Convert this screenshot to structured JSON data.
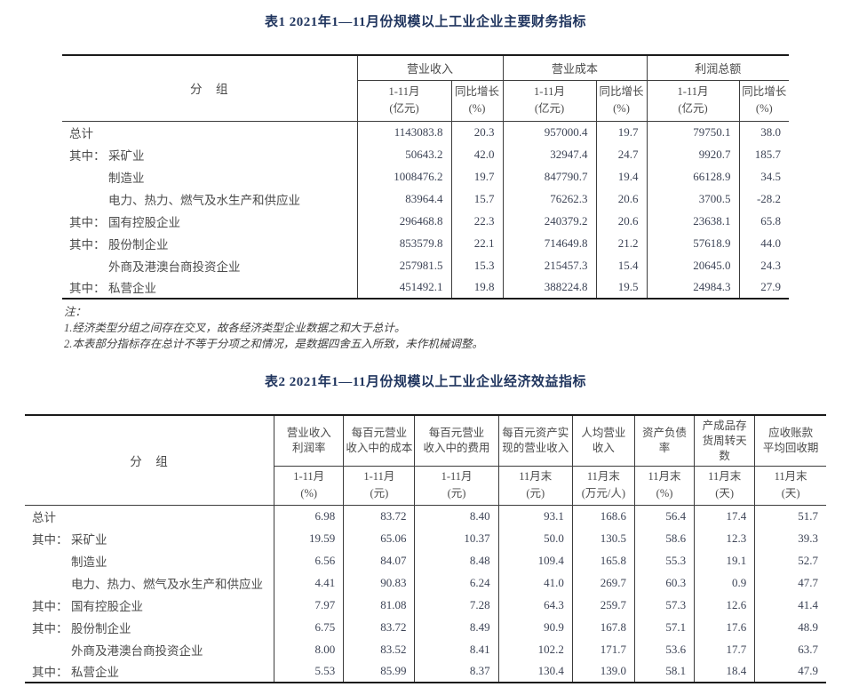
{
  "table1": {
    "title": "表1 2021年1—11月份规模以上工业企业主要财务指标",
    "group_header": "分　组",
    "col_groups": [
      {
        "label": "营业收入"
      },
      {
        "label": "营业成本"
      },
      {
        "label": "利润总额"
      }
    ],
    "sub_headers": [
      {
        "line1": "1-11月",
        "line2": "(亿元)"
      },
      {
        "line1": "同比增长",
        "line2": "(%)"
      },
      {
        "line1": "1-11月",
        "line2": "(亿元)"
      },
      {
        "line1": "同比增长",
        "line2": "(%)"
      },
      {
        "line1": "1-11月",
        "line2": "(亿元)"
      },
      {
        "line1": "同比增长",
        "line2": "(%)"
      }
    ],
    "rows": [
      {
        "prefix": "",
        "indent": false,
        "label": "总计",
        "values": [
          "1143083.8",
          "20.3",
          "957000.4",
          "19.7",
          "79750.1",
          "38.0"
        ]
      },
      {
        "prefix": "其中：",
        "indent": true,
        "label": "采矿业",
        "values": [
          "50643.2",
          "42.0",
          "32947.4",
          "24.7",
          "9920.7",
          "185.7"
        ]
      },
      {
        "prefix": "",
        "indent": true,
        "label": "制造业",
        "values": [
          "1008476.2",
          "19.7",
          "847790.7",
          "19.4",
          "66128.9",
          "34.5"
        ]
      },
      {
        "prefix": "",
        "indent": true,
        "label": "电力、热力、燃气及水生产和供应业",
        "values": [
          "83964.4",
          "15.7",
          "76262.3",
          "20.6",
          "3700.5",
          "-28.2"
        ]
      },
      {
        "prefix": "其中：",
        "indent": true,
        "label": "国有控股企业",
        "values": [
          "296468.8",
          "22.3",
          "240379.2",
          "20.6",
          "23638.1",
          "65.8"
        ]
      },
      {
        "prefix": "其中：",
        "indent": true,
        "label": "股份制企业",
        "values": [
          "853579.8",
          "22.1",
          "714649.8",
          "21.2",
          "57618.9",
          "44.0"
        ]
      },
      {
        "prefix": "",
        "indent": true,
        "label": "外商及港澳台商投资企业",
        "values": [
          "257981.5",
          "15.3",
          "215457.3",
          "15.4",
          "20645.0",
          "24.3"
        ]
      },
      {
        "prefix": "其中：",
        "indent": true,
        "label": "私营企业",
        "values": [
          "451492.1",
          "19.8",
          "388224.8",
          "19.5",
          "24984.3",
          "27.9"
        ]
      }
    ]
  },
  "notes": {
    "heading": "注：",
    "items": [
      "1.经济类型分组之间存在交叉，故各经济类型企业数据之和大于总计。",
      "2.本表部分指标存在总计不等于分项之和情况，是数据四舍五入所致，未作机械调整。"
    ]
  },
  "table2": {
    "title": "表2 2021年1—11月份规模以上工业企业经济效益指标",
    "group_header": "分　组",
    "columns": [
      {
        "title": "营业收入\n利润率",
        "period": "1-11月",
        "unit": "(%)"
      },
      {
        "title": "每百元营业\n收入中的成本",
        "period": "1-11月",
        "unit": "(元)"
      },
      {
        "title": "每百元营业\n收入中的费用",
        "period": "1-11月",
        "unit": "(元)"
      },
      {
        "title": "每百元资产实\n现的营业收入",
        "period": "11月末",
        "unit": "(元)"
      },
      {
        "title": "人均营业\n收入",
        "period": "11月末",
        "unit": "(万元/人)"
      },
      {
        "title": "资产负债\n率",
        "period": "11月末",
        "unit": "(%)"
      },
      {
        "title": "产成品存\n货周转天\n数",
        "period": "11月末",
        "unit": "(天)"
      },
      {
        "title": "应收账款\n平均回收期",
        "period": "11月末",
        "unit": "(天)"
      }
    ],
    "rows": [
      {
        "prefix": "",
        "indent": false,
        "label": "总计",
        "values": [
          "6.98",
          "83.72",
          "8.40",
          "93.1",
          "168.6",
          "56.4",
          "17.4",
          "51.7"
        ]
      },
      {
        "prefix": "其中：",
        "indent": true,
        "label": "采矿业",
        "values": [
          "19.59",
          "65.06",
          "10.37",
          "50.0",
          "130.5",
          "58.6",
          "12.3",
          "39.3"
        ]
      },
      {
        "prefix": "",
        "indent": true,
        "label": "制造业",
        "values": [
          "6.56",
          "84.07",
          "8.48",
          "109.4",
          "165.8",
          "55.3",
          "19.1",
          "52.7"
        ]
      },
      {
        "prefix": "",
        "indent": true,
        "label": "电力、热力、燃气及水生产和供应业",
        "values": [
          "4.41",
          "90.83",
          "6.24",
          "41.0",
          "269.7",
          "60.3",
          "0.9",
          "47.7"
        ]
      },
      {
        "prefix": "其中：",
        "indent": true,
        "label": "国有控股企业",
        "values": [
          "7.97",
          "81.08",
          "7.28",
          "64.3",
          "259.7",
          "57.3",
          "12.6",
          "41.4"
        ]
      },
      {
        "prefix": "其中：",
        "indent": true,
        "label": "股份制企业",
        "values": [
          "6.75",
          "83.72",
          "8.49",
          "90.9",
          "167.8",
          "57.1",
          "17.6",
          "48.9"
        ]
      },
      {
        "prefix": "",
        "indent": true,
        "label": "外商及港澳台商投资企业",
        "values": [
          "8.00",
          "83.52",
          "8.41",
          "102.2",
          "171.7",
          "53.6",
          "17.7",
          "63.7"
        ]
      },
      {
        "prefix": "其中：",
        "indent": true,
        "label": "私营企业",
        "values": [
          "5.53",
          "85.99",
          "8.37",
          "130.4",
          "139.0",
          "58.1",
          "18.4",
          "47.9"
        ]
      }
    ]
  }
}
